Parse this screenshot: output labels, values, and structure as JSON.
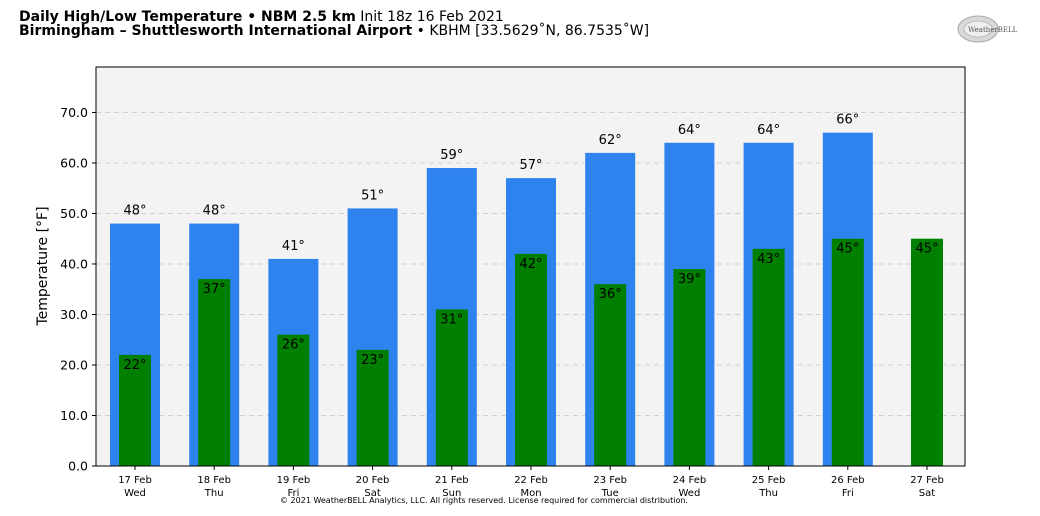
{
  "header": {
    "title_bold": "Daily High/Low Temperature • NBM 2.5 km",
    "title_init": "Init 18z 16 Feb 2021",
    "location_bold": "Birmingham – Shuttlesworth International Airport",
    "location_rest": "• KBHM [33.5629˚N, 86.7535˚W]"
  },
  "logo": {
    "name": "weatherbell-logo",
    "text": "WeatherBELL"
  },
  "copyright": "© 2021 WeatherBELL Analytics, LLC. All rights reserved. License required for commercial distribution.",
  "colors": {
    "high": "#2f83ef",
    "low": "#007f00",
    "plot_bg": "#f3f3f3"
  },
  "chart_data": {
    "type": "bar",
    "ylabel": "Temperature [°F]",
    "ylim": [
      0,
      79
    ],
    "yticks": [
      "0.0",
      "10.0",
      "20.0",
      "30.0",
      "40.0",
      "50.0",
      "60.0",
      "70.0"
    ],
    "grid": true,
    "categories": [
      {
        "date": "17 Feb",
        "day": "Wed"
      },
      {
        "date": "18 Feb",
        "day": "Thu"
      },
      {
        "date": "19 Feb",
        "day": "Fri"
      },
      {
        "date": "20 Feb",
        "day": "Sat"
      },
      {
        "date": "21 Feb",
        "day": "Sun"
      },
      {
        "date": "22 Feb",
        "day": "Mon"
      },
      {
        "date": "23 Feb",
        "day": "Tue"
      },
      {
        "date": "24 Feb",
        "day": "Wed"
      },
      {
        "date": "25 Feb",
        "day": "Thu"
      },
      {
        "date": "26 Feb",
        "day": "Fri"
      },
      {
        "date": "27 Feb",
        "day": "Sat"
      }
    ],
    "series": [
      {
        "key": "high",
        "values": [
          48,
          48,
          41,
          51,
          59,
          57,
          62,
          64,
          64,
          66,
          null
        ],
        "labels": [
          "48°",
          "48°",
          "41°",
          "51°",
          "59°",
          "57°",
          "62°",
          "64°",
          "64°",
          "66°",
          ""
        ]
      },
      {
        "key": "low",
        "values": [
          22,
          37,
          26,
          23,
          31,
          42,
          36,
          39,
          43,
          45,
          45
        ],
        "labels": [
          "22°",
          "37°",
          "26°",
          "23°",
          "31°",
          "42°",
          "36°",
          "39°",
          "43°",
          "45°",
          "45°"
        ]
      }
    ]
  }
}
